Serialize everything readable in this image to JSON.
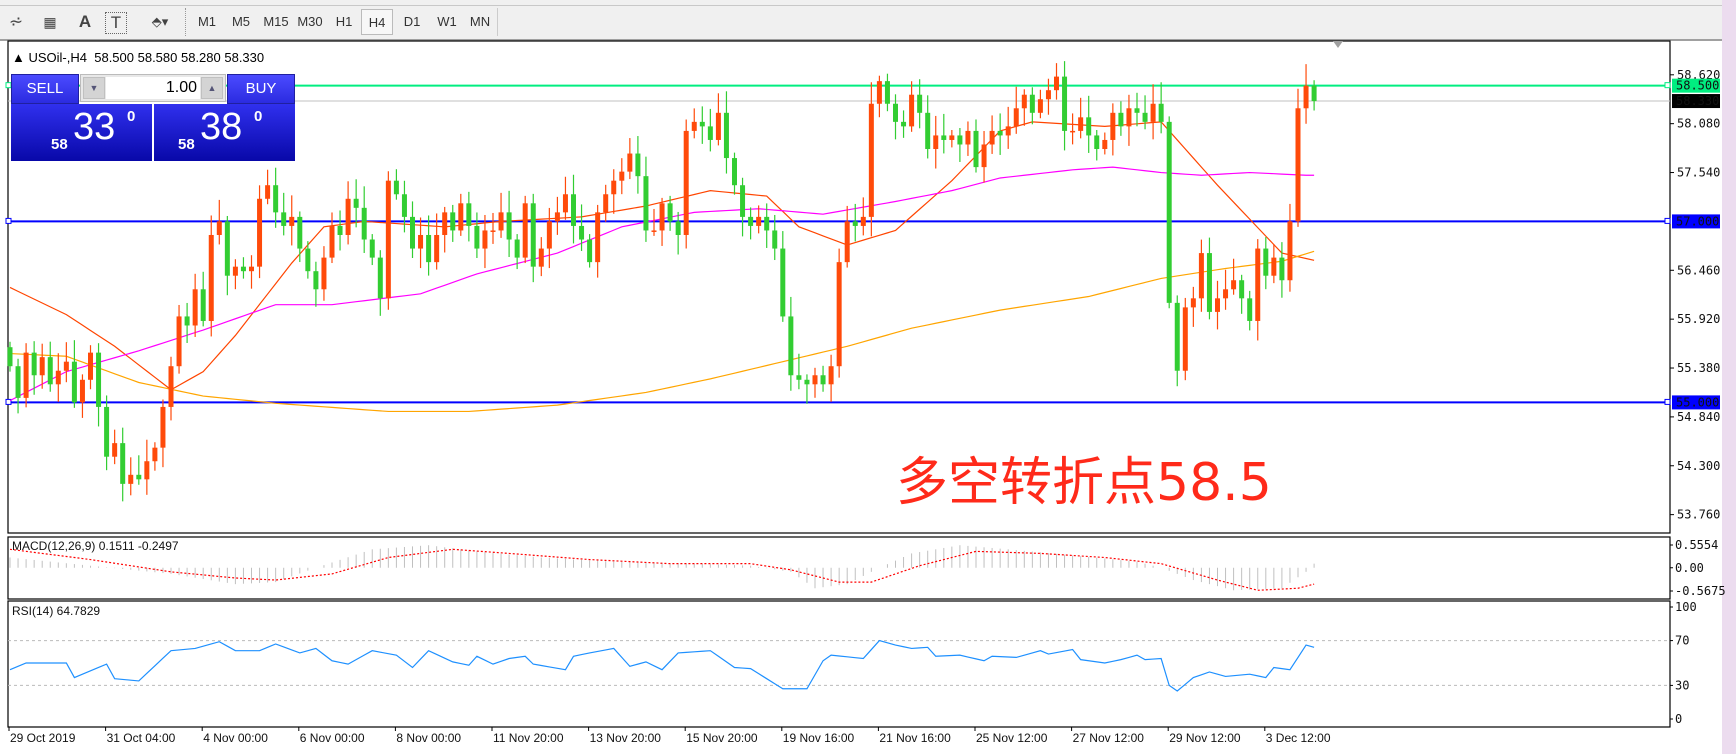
{
  "toolbar": {
    "tools": [
      {
        "name": "fibonacci-expansion-icon",
        "glyph": "⩫"
      },
      {
        "name": "fibonacci-fan-icon",
        "glyph": "▦"
      },
      {
        "name": "text-icon",
        "glyph": "A"
      },
      {
        "name": "text-label-icon",
        "glyph": "T"
      },
      {
        "name": "arrows-icon",
        "glyph": "⬘▾"
      }
    ],
    "timeframes": [
      "M1",
      "M5",
      "M15",
      "M30",
      "H1",
      "H4",
      "D1",
      "W1",
      "MN"
    ],
    "active_timeframe": "H4"
  },
  "header": {
    "symbol": "USOil-,H4",
    "ohlc": "58.500 58.580 58.280 58.330"
  },
  "trade_panel": {
    "sell_label": "SELL",
    "buy_label": "BUY",
    "lot": "1.00",
    "sell_price": {
      "small": "58",
      "big": "33",
      "sup": "0"
    },
    "buy_price": {
      "small": "58",
      "big": "38",
      "sup": "0"
    }
  },
  "annotation": "多空转折点58.5",
  "colors": {
    "bull_candle": "#ff4a0a",
    "bear_candle": "#32cd32",
    "ma_fast": "#ff4500",
    "ma_mid": "#ff00ff",
    "ma_slow": "#ffa500",
    "level_line": "#0000ff",
    "pivot_line": "#00ee80",
    "macd_hist": "#c0c0c0",
    "macd_signal": "#ff0000",
    "rsi": "#1e90ff"
  },
  "chart_data": {
    "type": "candlestick",
    "symbol": "USOil-",
    "timeframe": "H4",
    "ylim": [
      53.6,
      58.9
    ],
    "y_ticks": [
      "58.620",
      "58.080",
      "57.540",
      "56.460",
      "55.920",
      "55.380",
      "54.840",
      "54.300",
      "53.760"
    ],
    "x_ticks": [
      "29 Oct 2019",
      "31 Oct 04:00",
      "4 Nov 00:00",
      "6 Nov 00:00",
      "8 Nov 00:00",
      "11 Nov 20:00",
      "13 Nov 20:00",
      "15 Nov 20:00",
      "19 Nov 16:00",
      "21 Nov 16:00",
      "25 Nov 12:00",
      "27 Nov 12:00",
      "29 Nov 12:00",
      "3 Dec 12:00"
    ],
    "bars_per_tick": 12,
    "first_open": 55.61,
    "closes": [
      55.4,
      55.05,
      55.55,
      55.3,
      55.5,
      55.2,
      55.35,
      55.45,
      55.0,
      55.25,
      55.55,
      54.95,
      54.4,
      54.55,
      54.1,
      54.2,
      54.15,
      54.35,
      54.5,
      54.95,
      55.4,
      55.95,
      55.85,
      56.25,
      55.9,
      56.85,
      57.0,
      56.4,
      56.5,
      56.45,
      56.5,
      57.25,
      57.4,
      57.1,
      56.95,
      57.05,
      56.7,
      56.45,
      56.25,
      56.6,
      56.95,
      56.85,
      57.25,
      57.15,
      56.8,
      56.6,
      56.15,
      57.45,
      57.3,
      57.05,
      56.7,
      56.85,
      56.55,
      56.85,
      57.1,
      56.9,
      57.2,
      56.95,
      56.7,
      56.9,
      56.9,
      57.1,
      56.8,
      56.6,
      57.2,
      56.5,
      56.7,
      57.0,
      57.1,
      57.3,
      56.95,
      56.8,
      56.55,
      57.1,
      57.3,
      57.45,
      57.55,
      57.75,
      57.5,
      56.9,
      56.9,
      57.2,
      57.0,
      56.85,
      58.0,
      58.1,
      58.05,
      57.9,
      58.2,
      57.7,
      57.4,
      57.05,
      56.95,
      57.05,
      56.9,
      56.7,
      55.95,
      55.3,
      55.25,
      55.2,
      55.3,
      55.2,
      55.4,
      56.55,
      57.0,
      56.95,
      57.05,
      58.3,
      58.55,
      58.3,
      58.1,
      58.05,
      58.4,
      58.2,
      57.8,
      57.95,
      57.9,
      57.95,
      57.85,
      58.0,
      57.6,
      57.85,
      58.0,
      57.95,
      58.05,
      58.25,
      58.4,
      58.2,
      58.35,
      58.45,
      58.6,
      58.0,
      58.0,
      58.15,
      57.95,
      57.8,
      57.9,
      58.2,
      58.05,
      58.25,
      58.2,
      58.1,
      58.3,
      58.1,
      56.1,
      55.35,
      56.05,
      56.15,
      56.65,
      56.0,
      56.15,
      56.25,
      56.35,
      56.15,
      55.9,
      56.7,
      56.4,
      56.6,
      56.35,
      57.0,
      58.25,
      58.5,
      58.33
    ],
    "moving_averages": [
      {
        "color": "#ff4500",
        "points": [
          [
            0,
            56.27
          ],
          [
            7,
            55.97
          ],
          [
            13,
            55.62
          ],
          [
            20,
            55.14
          ],
          [
            24,
            55.34
          ],
          [
            28,
            55.74
          ],
          [
            35,
            56.54
          ],
          [
            39,
            56.94
          ],
          [
            44,
            57.0
          ],
          [
            54,
            56.94
          ],
          [
            61,
            57.0
          ],
          [
            71,
            57.05
          ],
          [
            79,
            57.17
          ],
          [
            87,
            57.34
          ],
          [
            94,
            57.28
          ],
          [
            98,
            56.94
          ],
          [
            104,
            56.74
          ],
          [
            110,
            56.9
          ],
          [
            117,
            57.45
          ],
          [
            123,
            58.0
          ],
          [
            127,
            58.1
          ],
          [
            136,
            58.05
          ],
          [
            143,
            58.1
          ],
          [
            150,
            57.4
          ],
          [
            158,
            56.65
          ],
          [
            162,
            56.57
          ]
        ]
      },
      {
        "color": "#ff00ff",
        "points": [
          [
            0,
            55.02
          ],
          [
            7,
            55.34
          ],
          [
            16,
            55.57
          ],
          [
            24,
            55.8
          ],
          [
            33,
            56.08
          ],
          [
            40,
            56.08
          ],
          [
            51,
            56.2
          ],
          [
            58,
            56.42
          ],
          [
            68,
            56.65
          ],
          [
            76,
            56.94
          ],
          [
            85,
            57.1
          ],
          [
            93,
            57.14
          ],
          [
            101,
            57.08
          ],
          [
            110,
            57.22
          ],
          [
            117,
            57.34
          ],
          [
            123,
            57.48
          ],
          [
            132,
            57.57
          ],
          [
            137,
            57.6
          ],
          [
            143,
            57.54
          ],
          [
            148,
            57.51
          ],
          [
            154,
            57.54
          ],
          [
            161,
            57.51
          ],
          [
            162,
            57.51
          ]
        ]
      },
      {
        "color": "#ffa500",
        "points": [
          [
            0,
            55.54
          ],
          [
            7,
            55.51
          ],
          [
            16,
            55.22
          ],
          [
            24,
            55.07
          ],
          [
            33,
            54.99
          ],
          [
            47,
            54.9
          ],
          [
            57,
            54.9
          ],
          [
            68,
            54.97
          ],
          [
            79,
            55.11
          ],
          [
            87,
            55.26
          ],
          [
            96,
            55.45
          ],
          [
            104,
            55.62
          ],
          [
            112,
            55.82
          ],
          [
            123,
            56.02
          ],
          [
            134,
            56.17
          ],
          [
            143,
            56.37
          ],
          [
            151,
            56.48
          ],
          [
            158,
            56.56
          ],
          [
            162,
            56.67
          ]
        ]
      }
    ],
    "horizontal_lines": [
      {
        "price": 58.5,
        "label": "58.500",
        "color": "#00ee80"
      },
      {
        "price": 57.0,
        "label": "57.000",
        "color": "#0000ff"
      },
      {
        "price": 55.0,
        "label": "55.000",
        "color": "#0000ff"
      }
    ],
    "current_price": {
      "price": 58.33,
      "label": "58.330"
    },
    "macd": {
      "title": "MACD(12,26,9) 0.1511 -0.2497",
      "ylim": [
        -0.5675,
        0.5554
      ],
      "y_ticks": [
        "0.5554",
        "0.00",
        "-0.5675"
      ],
      "histogram": [
        [
          0,
          0.25
        ],
        [
          10,
          0.05
        ],
        [
          20,
          -0.15
        ],
        [
          28,
          -0.4
        ],
        [
          33,
          -0.35
        ],
        [
          38,
          0.0
        ],
        [
          45,
          0.45
        ],
        [
          52,
          0.55
        ],
        [
          58,
          0.4
        ],
        [
          66,
          0.25
        ],
        [
          75,
          0.15
        ],
        [
          85,
          0.1
        ],
        [
          92,
          0.05
        ],
        [
          97,
          -0.1
        ],
        [
          100,
          -0.5
        ],
        [
          104,
          -0.4
        ],
        [
          108,
          0.0
        ],
        [
          112,
          0.35
        ],
        [
          118,
          0.55
        ],
        [
          124,
          0.45
        ],
        [
          132,
          0.3
        ],
        [
          140,
          0.15
        ],
        [
          143,
          0.0
        ],
        [
          147,
          -0.3
        ],
        [
          152,
          -0.55
        ],
        [
          158,
          -0.5
        ],
        [
          161,
          -0.1
        ],
        [
          162,
          0.1
        ]
      ],
      "signal": [
        [
          0,
          0.45
        ],
        [
          10,
          0.2
        ],
        [
          20,
          -0.1
        ],
        [
          28,
          -0.25
        ],
        [
          33,
          -0.3
        ],
        [
          40,
          -0.15
        ],
        [
          47,
          0.25
        ],
        [
          55,
          0.45
        ],
        [
          62,
          0.35
        ],
        [
          72,
          0.2
        ],
        [
          82,
          0.1
        ],
        [
          92,
          0.1
        ],
        [
          97,
          -0.05
        ],
        [
          103,
          -0.35
        ],
        [
          107,
          -0.35
        ],
        [
          113,
          0.05
        ],
        [
          120,
          0.4
        ],
        [
          128,
          0.35
        ],
        [
          136,
          0.25
        ],
        [
          143,
          0.1
        ],
        [
          150,
          -0.3
        ],
        [
          155,
          -0.55
        ],
        [
          160,
          -0.5
        ],
        [
          162,
          -0.4
        ]
      ]
    },
    "rsi": {
      "title": "RSI(14) 64.7829",
      "ylim": [
        0,
        100
      ],
      "y_ticks": [
        "100",
        "70",
        "30",
        "0"
      ],
      "levels": [
        70,
        30
      ],
      "points": [
        [
          0,
          44
        ],
        [
          2,
          50
        ],
        [
          7,
          50
        ],
        [
          8,
          37
        ],
        [
          12,
          49
        ],
        [
          13,
          36
        ],
        [
          16,
          34
        ],
        [
          20,
          61
        ],
        [
          23,
          63
        ],
        [
          26,
          69
        ],
        [
          28,
          61
        ],
        [
          31,
          61
        ],
        [
          33,
          67
        ],
        [
          36,
          59
        ],
        [
          38,
          63
        ],
        [
          40,
          52
        ],
        [
          42,
          49
        ],
        [
          45,
          61
        ],
        [
          48,
          57
        ],
        [
          50,
          46
        ],
        [
          52,
          61
        ],
        [
          55,
          51
        ],
        [
          57,
          48
        ],
        [
          58,
          56
        ],
        [
          60,
          49
        ],
        [
          62,
          54
        ],
        [
          64,
          56
        ],
        [
          65,
          49
        ],
        [
          69,
          44
        ],
        [
          70,
          56
        ],
        [
          72,
          59
        ],
        [
          75,
          63
        ],
        [
          77,
          47
        ],
        [
          79,
          51
        ],
        [
          81,
          44
        ],
        [
          83,
          59
        ],
        [
          87,
          61
        ],
        [
          90,
          46
        ],
        [
          92,
          45
        ],
        [
          96,
          27
        ],
        [
          99,
          27
        ],
        [
          101,
          52
        ],
        [
          102,
          57
        ],
        [
          106,
          54
        ],
        [
          108,
          70
        ],
        [
          110,
          66
        ],
        [
          112,
          63
        ],
        [
          114,
          64
        ],
        [
          115,
          56
        ],
        [
          118,
          57
        ],
        [
          121,
          52
        ],
        [
          122,
          56
        ],
        [
          125,
          55
        ],
        [
          128,
          61
        ],
        [
          129,
          58
        ],
        [
          132,
          62
        ],
        [
          133,
          53
        ],
        [
          136,
          50
        ],
        [
          138,
          53
        ],
        [
          140,
          57
        ],
        [
          141,
          53
        ],
        [
          143,
          54
        ],
        [
          144,
          30
        ],
        [
          145,
          25
        ],
        [
          147,
          37
        ],
        [
          149,
          42
        ],
        [
          151,
          38
        ],
        [
          154,
          40
        ],
        [
          156,
          37
        ],
        [
          157,
          46
        ],
        [
          159,
          44
        ],
        [
          161,
          66
        ],
        [
          162,
          64
        ]
      ]
    }
  }
}
